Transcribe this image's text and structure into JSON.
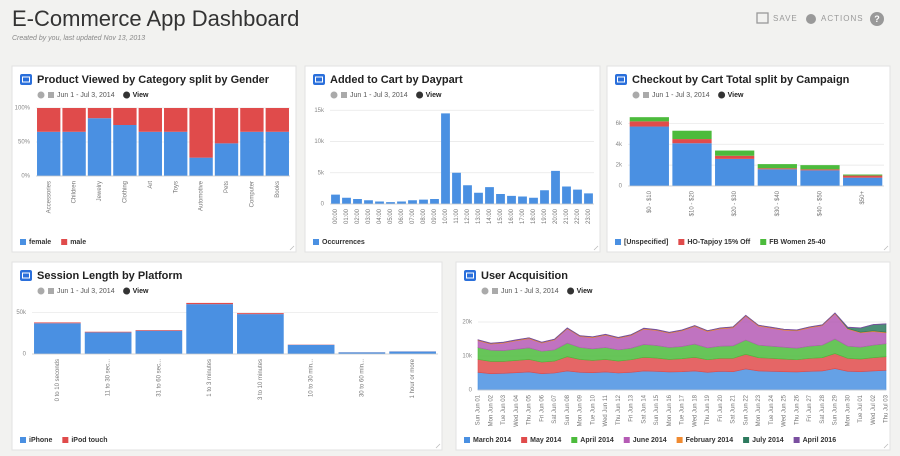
{
  "header": {
    "title": "E-Commerce App Dashboard",
    "subtitle": "Created by you, last updated Nov 13, 2013",
    "save": "SAVE",
    "actions": "ACTIONS",
    "help": "?"
  },
  "chart_data": [
    {
      "type": "bar",
      "title": "Product Viewed by Category split by Gender",
      "date_range": "Jun 1 - Jul 3, 2014",
      "link": "View",
      "categories": [
        "Accessories",
        "Children",
        "Jewelry",
        "Clothing",
        "Art",
        "Toys",
        "Automotive",
        "Pets",
        "Computer",
        "Books"
      ],
      "series": [
        {
          "name": "female",
          "color": "#4a90e2",
          "values": [
            65,
            65,
            85,
            75,
            65,
            65,
            27,
            48,
            65,
            65
          ]
        },
        {
          "name": "male",
          "color": "#e04b4b",
          "values": [
            35,
            35,
            15,
            25,
            35,
            35,
            73,
            52,
            35,
            35
          ]
        }
      ],
      "ylim": [
        0,
        100
      ],
      "yticks": [
        {
          "value": 0,
          "label": "0%"
        },
        {
          "value": 50,
          "label": "50%"
        },
        {
          "value": 100,
          "label": "100%"
        }
      ],
      "grid": true
    },
    {
      "type": "bar",
      "title": "Added to Cart by Daypart",
      "date_range": "Jun 1 - Jul 3, 2014",
      "link": "View",
      "categories": [
        "00:00",
        "01:00",
        "02:00",
        "03:00",
        "04:00",
        "05:00",
        "06:00",
        "07:00",
        "08:00",
        "09:00",
        "10:00",
        "11:00",
        "12:00",
        "13:00",
        "14:00",
        "15:00",
        "16:00",
        "17:00",
        "18:00",
        "19:00",
        "20:00",
        "21:00",
        "22:00",
        "23:00"
      ],
      "series": [
        {
          "name": "Occurrences",
          "color": "#4a90e2",
          "values": [
            1500,
            1000,
            800,
            600,
            400,
            300,
            400,
            600,
            700,
            800,
            14500,
            5000,
            3000,
            1800,
            2700,
            1600,
            1300,
            1200,
            1000,
            2200,
            5300,
            2800,
            2300,
            1700
          ]
        }
      ],
      "ylim": [
        0,
        16000
      ],
      "yticks": [
        0,
        {
          "value": 5000,
          "label": "5k"
        },
        {
          "value": 10000,
          "label": "10k"
        },
        {
          "value": 15000,
          "label": "15k"
        }
      ],
      "grid": true
    },
    {
      "type": "bar",
      "title": "Checkout by Cart Total split by Campaign",
      "date_range": "Jun 1 - Jul 3, 2014",
      "link": "View",
      "categories": [
        "$0 - $10",
        "$10 - $20",
        "$20 - $30",
        "$30 - $40",
        "$40 - $50",
        "$50+"
      ],
      "series": [
        {
          "name": "[Unspecified]",
          "color": "#4a90e2",
          "values": [
            5700,
            4100,
            2600,
            1600,
            1500,
            800
          ]
        },
        {
          "name": "HO-Tapjoy 15% Off",
          "color": "#e04b4b",
          "values": [
            500,
            400,
            300,
            100,
            100,
            200
          ]
        },
        {
          "name": "FB Women 25-40",
          "color": "#4cbb3c",
          "values": [
            400,
            800,
            500,
            400,
            400,
            100
          ]
        }
      ],
      "ylim": [
        0,
        7000
      ],
      "yticks": [
        0,
        {
          "value": 2000,
          "label": "2k"
        },
        {
          "value": 4000,
          "label": "4k"
        },
        {
          "value": 6000,
          "label": "6k"
        }
      ],
      "grid": true
    },
    {
      "type": "bar",
      "title": "Session Length by Platform",
      "date_range": "Jun 1 - Jul 3, 2014",
      "link": "View",
      "categories": [
        "0 to 10 seconds",
        "11 to 30 sec...",
        "31 to 60 sec...",
        "1 to 3 minutes",
        "3 to 10 minutes",
        "10 to 30 min...",
        "30 to 60 min...",
        "1 hour or more"
      ],
      "series": [
        {
          "name": "iPhone",
          "color": "#4a90e2",
          "values": [
            37000,
            26000,
            28000,
            60000,
            48000,
            11000,
            2000,
            3000
          ]
        },
        {
          "name": "iPod touch",
          "color": "#e04b4b",
          "values": [
            1000,
            800,
            800,
            1500,
            1200,
            300,
            100,
            100
          ]
        }
      ],
      "ylim": [
        0,
        65000
      ],
      "yticks": [
        0,
        {
          "value": 50000,
          "label": "50k"
        }
      ],
      "grid": true
    },
    {
      "type": "area",
      "title": "User Acquisition",
      "date_range": "Jun 1 - Jul 3, 2014",
      "link": "View",
      "categories": [
        "Sun Jun 01",
        "Mon Jun 02",
        "Tue Jun 03",
        "Wed Jun 04",
        "Thu Jun 05",
        "Fri Jun 06",
        "Sat Jun 07",
        "Sun Jun 08",
        "Mon Jun 09",
        "Tue Jun 10",
        "Wed Jun 11",
        "Thu Jun 12",
        "Fri Jun 13",
        "Sat Jun 14",
        "Sun Jun 15",
        "Mon Jun 16",
        "Tue Jun 17",
        "Wed Jun 18",
        "Thu Jun 19",
        "Fri Jun 20",
        "Sat Jun 21",
        "Sun Jun 22",
        "Mon Jun 23",
        "Tue Jun 24",
        "Wed Jun 25",
        "Thu Jun 26",
        "Fri Jun 27",
        "Sat Jun 28",
        "Sun Jun 29",
        "Mon Jun 30",
        "Tue Jul 01",
        "Wed Jul 02",
        "Thu Jul 03"
      ],
      "series": [
        {
          "name": "March 2014",
          "color": "#4a90e2",
          "values": [
            5200,
            4800,
            4900,
            5100,
            5300,
            4800,
            5000,
            5600,
            5200,
            5100,
            5300,
            5000,
            5200,
            5600,
            5500,
            5300,
            5400,
            5600,
            5200,
            5500,
            5400,
            6200,
            5600,
            5500,
            5400,
            5300,
            5500,
            5600,
            6300,
            5500,
            5400,
            5600,
            5800
          ]
        },
        {
          "name": "May 2014",
          "color": "#e04b4b",
          "values": [
            3800,
            3600,
            3500,
            3600,
            3700,
            3400,
            3500,
            4200,
            3800,
            3600,
            3700,
            3500,
            3700,
            4000,
            3900,
            3700,
            3800,
            4000,
            3700,
            3800,
            3900,
            4300,
            3900,
            3800,
            3700,
            3600,
            3800,
            3900,
            4400,
            3800,
            3700,
            3900,
            4000
          ]
        },
        {
          "name": "April 2014",
          "color": "#4cbb3c",
          "values": [
            3500,
            3300,
            3200,
            3300,
            3400,
            3200,
            3300,
            4000,
            3500,
            3400,
            3500,
            3300,
            3400,
            3800,
            3700,
            3500,
            3600,
            3900,
            3500,
            3600,
            3700,
            4200,
            3700,
            3600,
            3500,
            3400,
            3600,
            3700,
            4300,
            3600,
            3500,
            3700,
            3800
          ]
        },
        {
          "name": "June 2014",
          "color": "#b55bb5",
          "values": [
            2000,
            1800,
            2200,
            2500,
            2700,
            2400,
            2900,
            4200,
            3200,
            3300,
            3600,
            3400,
            3700,
            4500,
            4400,
            4200,
            4600,
            5200,
            4800,
            5100,
            5300,
            7000,
            5600,
            5300,
            5000,
            5100,
            5400,
            5700,
            7400,
            5000,
            4200,
            4000,
            3200
          ]
        },
        {
          "name": "February 2014",
          "color": "#f08a30",
          "values": [
            200,
            200,
            200,
            200,
            200,
            200,
            200,
            200,
            200,
            200,
            200,
            200,
            200,
            200,
            200,
            200,
            200,
            200,
            200,
            200,
            200,
            200,
            200,
            200,
            200,
            200,
            200,
            200,
            200,
            200,
            200,
            200,
            200
          ]
        },
        {
          "name": "July 2014",
          "color": "#2d7a5e",
          "values": [
            0,
            0,
            0,
            0,
            0,
            0,
            0,
            0,
            0,
            0,
            0,
            0,
            0,
            0,
            0,
            0,
            0,
            0,
            0,
            0,
            0,
            0,
            0,
            0,
            0,
            0,
            0,
            0,
            0,
            300,
            1200,
            1800,
            2400
          ]
        },
        {
          "name": "April 2016",
          "color": "#7a4fa0",
          "values": [
            100,
            100,
            100,
            100,
            100,
            100,
            100,
            100,
            100,
            100,
            100,
            100,
            100,
            100,
            100,
            100,
            100,
            100,
            100,
            100,
            100,
            100,
            100,
            100,
            100,
            100,
            100,
            100,
            100,
            100,
            100,
            100,
            100
          ]
        }
      ],
      "ylim": [
        0,
        25000
      ],
      "yticks": [
        0,
        {
          "value": 10000,
          "label": "10k"
        },
        {
          "value": 20000,
          "label": "20k"
        }
      ],
      "grid": true
    }
  ]
}
